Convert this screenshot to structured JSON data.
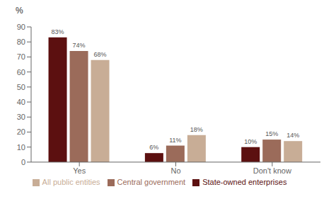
{
  "chart_data": {
    "type": "bar",
    "ylabel": "%",
    "categories": [
      "Yes",
      "No",
      "Don't know"
    ],
    "series": [
      {
        "name": "State-owned enterprises",
        "color": "#5c1010",
        "values": [
          83,
          6,
          10
        ],
        "value_labels": [
          "83%",
          "6%",
          "10%"
        ]
      },
      {
        "name": "Central government",
        "color": "#9b6b5a",
        "values": [
          74,
          11,
          15
        ],
        "value_labels": [
          "74%",
          "11%",
          "15%"
        ]
      },
      {
        "name": "All public entities",
        "color": "#c8ad96",
        "values": [
          68,
          18,
          14
        ],
        "value_labels": [
          "68%",
          "18%",
          "14%"
        ]
      }
    ],
    "ylim": [
      0,
      90
    ],
    "yticks": [
      0,
      10,
      20,
      30,
      40,
      50,
      60,
      70,
      80,
      90
    ],
    "grid": false,
    "legend": "bottom",
    "data_labels": true
  }
}
